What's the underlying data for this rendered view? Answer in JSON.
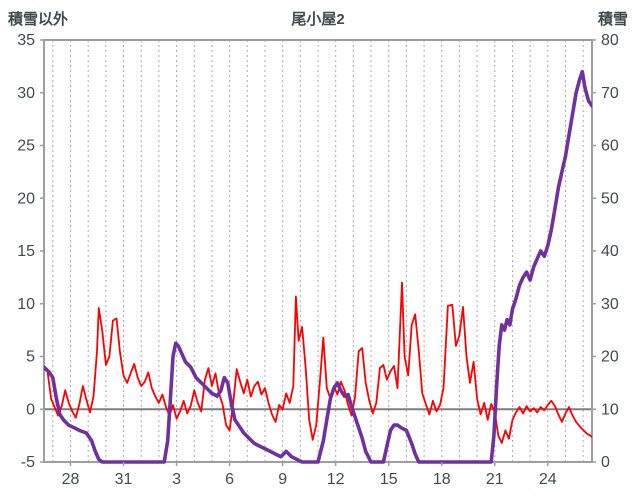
{
  "header": {
    "title": "尾小屋2",
    "left_axis_title": "積雪以外",
    "right_axis_title": "積雪"
  },
  "colors": {
    "text": "#3f4c4c",
    "grid": "#aaaaaa",
    "border": "#9e9e9e",
    "zero_line": "#7f7f7f",
    "red_series": "#ff0000",
    "purple_series": "#7030a0",
    "background": "#ffffff"
  },
  "chart_data": {
    "type": "line",
    "title": "尾小屋2",
    "left_axis": {
      "label": "積雪以外",
      "min": -5,
      "max": 35,
      "ticks": [
        35,
        30,
        25,
        20,
        15,
        10,
        5,
        0,
        -5
      ]
    },
    "right_axis": {
      "label": "積雪",
      "min": 0,
      "max": 80,
      "ticks": [
        80,
        70,
        60,
        50,
        40,
        30,
        20,
        10,
        0
      ]
    },
    "x_axis": {
      "min": 0,
      "max": 31,
      "tick_labels": [
        "28",
        "31",
        "3",
        "6",
        "9",
        "12",
        "15",
        "18",
        "21",
        "24"
      ],
      "tick_positions": [
        1.5,
        4.5,
        7.5,
        10.5,
        13.5,
        16.5,
        19.5,
        22.5,
        25.5,
        28.5
      ],
      "gridline_start": 0.5,
      "gridline_step": 1
    },
    "zero_line": {
      "axis": "left",
      "value": 0
    },
    "series": [
      {
        "name": "積雪以外",
        "axis": "left",
        "color": "#ff0000",
        "width": 1.8,
        "points": [
          [
            0,
            3.8
          ],
          [
            0.2,
            3.6
          ],
          [
            0.4,
            1.0
          ],
          [
            0.6,
            0.2
          ],
          [
            0.8,
            -0.6
          ],
          [
            1.0,
            0.3
          ],
          [
            1.2,
            1.8
          ],
          [
            1.4,
            0.6
          ],
          [
            1.6,
            -0.2
          ],
          [
            1.8,
            -0.8
          ],
          [
            2.0,
            0.5
          ],
          [
            2.2,
            2.2
          ],
          [
            2.4,
            0.9
          ],
          [
            2.6,
            -0.3
          ],
          [
            2.8,
            1.2
          ],
          [
            3.0,
            5.5
          ],
          [
            3.1,
            9.6
          ],
          [
            3.3,
            7.4
          ],
          [
            3.5,
            4.2
          ],
          [
            3.7,
            5.0
          ],
          [
            3.9,
            8.4
          ],
          [
            4.1,
            8.6
          ],
          [
            4.3,
            5.4
          ],
          [
            4.5,
            3.2
          ],
          [
            4.7,
            2.5
          ],
          [
            4.9,
            3.4
          ],
          [
            5.1,
            4.3
          ],
          [
            5.3,
            3.0
          ],
          [
            5.5,
            2.2
          ],
          [
            5.7,
            2.6
          ],
          [
            5.9,
            3.5
          ],
          [
            6.1,
            2.0
          ],
          [
            6.3,
            1.2
          ],
          [
            6.5,
            0.6
          ],
          [
            6.7,
            1.4
          ],
          [
            6.9,
            0.2
          ],
          [
            7.1,
            -0.6
          ],
          [
            7.3,
            0.4
          ],
          [
            7.5,
            -0.9
          ],
          [
            7.7,
            -0.2
          ],
          [
            7.9,
            0.8
          ],
          [
            8.1,
            -0.4
          ],
          [
            8.3,
            0.3
          ],
          [
            8.5,
            1.8
          ],
          [
            8.7,
            0.6
          ],
          [
            8.9,
            -0.2
          ],
          [
            9.1,
            2.8
          ],
          [
            9.3,
            3.9
          ],
          [
            9.5,
            2.2
          ],
          [
            9.7,
            3.4
          ],
          [
            9.9,
            1.5
          ],
          [
            10.1,
            0.5
          ],
          [
            10.3,
            -1.5
          ],
          [
            10.5,
            -2.0
          ],
          [
            10.7,
            0.5
          ],
          [
            10.9,
            3.8
          ],
          [
            11.1,
            2.6
          ],
          [
            11.3,
            1.5
          ],
          [
            11.5,
            2.8
          ],
          [
            11.7,
            1.2
          ],
          [
            11.9,
            2.2
          ],
          [
            12.1,
            2.6
          ],
          [
            12.3,
            1.4
          ],
          [
            12.5,
            2.0
          ],
          [
            12.7,
            0.6
          ],
          [
            12.9,
            -0.5
          ],
          [
            13.1,
            -1.2
          ],
          [
            13.3,
            0.4
          ],
          [
            13.5,
            0.0
          ],
          [
            13.7,
            1.5
          ],
          [
            13.9,
            0.6
          ],
          [
            14.1,
            2.2
          ],
          [
            14.25,
            10.7
          ],
          [
            14.4,
            6.5
          ],
          [
            14.6,
            7.8
          ],
          [
            14.8,
            4.0
          ],
          [
            15.0,
            -1.0
          ],
          [
            15.2,
            -2.9
          ],
          [
            15.4,
            -1.5
          ],
          [
            15.6,
            2.5
          ],
          [
            15.8,
            6.8
          ],
          [
            16.0,
            2.0
          ],
          [
            16.2,
            1.0
          ],
          [
            16.4,
            2.2
          ],
          [
            16.6,
            1.4
          ],
          [
            16.8,
            2.6
          ],
          [
            17.0,
            1.8
          ],
          [
            17.2,
            0.4
          ],
          [
            17.4,
            -0.6
          ],
          [
            17.6,
            1.2
          ],
          [
            17.8,
            5.5
          ],
          [
            18.0,
            5.8
          ],
          [
            18.2,
            2.5
          ],
          [
            18.4,
            0.8
          ],
          [
            18.6,
            -0.4
          ],
          [
            18.8,
            0.6
          ],
          [
            19.0,
            3.9
          ],
          [
            19.2,
            4.2
          ],
          [
            19.4,
            2.8
          ],
          [
            19.6,
            3.6
          ],
          [
            19.8,
            4.1
          ],
          [
            20.0,
            2.0
          ],
          [
            20.25,
            12.0
          ],
          [
            20.4,
            5.0
          ],
          [
            20.6,
            3.2
          ],
          [
            20.8,
            8.0
          ],
          [
            21.0,
            9.0
          ],
          [
            21.2,
            5.5
          ],
          [
            21.4,
            1.5
          ],
          [
            21.6,
            0.5
          ],
          [
            21.8,
            -0.5
          ],
          [
            22.0,
            0.8
          ],
          [
            22.2,
            -0.2
          ],
          [
            22.4,
            0.4
          ],
          [
            22.6,
            2.0
          ],
          [
            22.85,
            9.8
          ],
          [
            23.1,
            9.9
          ],
          [
            23.3,
            6.0
          ],
          [
            23.5,
            7.0
          ],
          [
            23.7,
            9.7
          ],
          [
            23.9,
            5.0
          ],
          [
            24.1,
            2.5
          ],
          [
            24.3,
            4.5
          ],
          [
            24.5,
            1.0
          ],
          [
            24.7,
            -0.5
          ],
          [
            24.9,
            0.6
          ],
          [
            25.1,
            -1.0
          ],
          [
            25.3,
            0.5
          ],
          [
            25.5,
            -0.3
          ],
          [
            25.7,
            -2.5
          ],
          [
            25.9,
            -3.2
          ],
          [
            26.1,
            -2.0
          ],
          [
            26.3,
            -2.8
          ],
          [
            26.5,
            -1.0
          ],
          [
            26.7,
            -0.3
          ],
          [
            26.9,
            0.2
          ],
          [
            27.1,
            -0.4
          ],
          [
            27.3,
            0.3
          ],
          [
            27.5,
            -0.2
          ],
          [
            27.7,
            0.1
          ],
          [
            27.9,
            -0.3
          ],
          [
            28.1,
            0.2
          ],
          [
            28.3,
            -0.1
          ],
          [
            28.5,
            0.4
          ],
          [
            28.7,
            0.8
          ],
          [
            28.9,
            0.3
          ],
          [
            29.1,
            -0.5
          ],
          [
            29.3,
            -1.2
          ],
          [
            29.5,
            -0.4
          ],
          [
            29.7,
            0.2
          ],
          [
            29.9,
            -0.6
          ],
          [
            30.1,
            -1.2
          ],
          [
            30.4,
            -1.8
          ],
          [
            30.7,
            -2.3
          ],
          [
            31,
            -2.6
          ]
        ]
      },
      {
        "name": "積雪",
        "axis": "right",
        "color": "#7030a0",
        "width": 3.6,
        "points": [
          [
            0,
            18
          ],
          [
            0.3,
            17
          ],
          [
            0.5,
            16
          ],
          [
            0.7,
            12
          ],
          [
            0.9,
            9
          ],
          [
            1.1,
            8
          ],
          [
            1.4,
            7
          ],
          [
            1.7,
            6.5
          ],
          [
            2.0,
            6
          ],
          [
            2.4,
            5.5
          ],
          [
            2.7,
            4
          ],
          [
            2.9,
            2
          ],
          [
            3.1,
            0.5
          ],
          [
            3.3,
            0
          ],
          [
            6.8,
            0
          ],
          [
            7.0,
            4
          ],
          [
            7.15,
            12
          ],
          [
            7.3,
            20
          ],
          [
            7.45,
            22.5
          ],
          [
            7.6,
            22
          ],
          [
            7.8,
            20.5
          ],
          [
            8.0,
            19
          ],
          [
            8.3,
            18
          ],
          [
            8.6,
            16
          ],
          [
            8.9,
            15
          ],
          [
            9.2,
            14
          ],
          [
            9.5,
            13
          ],
          [
            9.8,
            12.5
          ],
          [
            10.0,
            13.5
          ],
          [
            10.2,
            16
          ],
          [
            10.4,
            15
          ],
          [
            10.6,
            11
          ],
          [
            10.8,
            8
          ],
          [
            11.0,
            7
          ],
          [
            11.3,
            5.5
          ],
          [
            11.6,
            4.5
          ],
          [
            11.9,
            3.5
          ],
          [
            12.2,
            3
          ],
          [
            12.5,
            2.5
          ],
          [
            12.8,
            2
          ],
          [
            13.1,
            1.5
          ],
          [
            13.4,
            1
          ],
          [
            13.7,
            2
          ],
          [
            14.0,
            1
          ],
          [
            14.3,
            0.5
          ],
          [
            14.6,
            0
          ],
          [
            15.5,
            0
          ],
          [
            15.8,
            4
          ],
          [
            16.0,
            8
          ],
          [
            16.2,
            12
          ],
          [
            16.4,
            14
          ],
          [
            16.6,
            15
          ],
          [
            16.8,
            13.5
          ],
          [
            17.0,
            12.5
          ],
          [
            17.2,
            12.8
          ],
          [
            17.4,
            10.5
          ],
          [
            17.6,
            8.5
          ],
          [
            17.8,
            6.5
          ],
          [
            18.0,
            4.5
          ],
          [
            18.2,
            2
          ],
          [
            18.5,
            0
          ],
          [
            19.2,
            0
          ],
          [
            19.4,
            3
          ],
          [
            19.6,
            6
          ],
          [
            19.8,
            7
          ],
          [
            20.0,
            7
          ],
          [
            20.2,
            6.5
          ],
          [
            20.5,
            6
          ],
          [
            20.8,
            3.5
          ],
          [
            21.0,
            1.5
          ],
          [
            21.2,
            0
          ],
          [
            25.3,
            0
          ],
          [
            25.45,
            5
          ],
          [
            25.6,
            14
          ],
          [
            25.75,
            22
          ],
          [
            25.9,
            26
          ],
          [
            26.05,
            25
          ],
          [
            26.2,
            27
          ],
          [
            26.35,
            26
          ],
          [
            26.5,
            29
          ],
          [
            26.7,
            31
          ],
          [
            26.9,
            33.5
          ],
          [
            27.1,
            35
          ],
          [
            27.3,
            36
          ],
          [
            27.5,
            34.5
          ],
          [
            27.7,
            37
          ],
          [
            27.9,
            38.5
          ],
          [
            28.1,
            40
          ],
          [
            28.3,
            39
          ],
          [
            28.5,
            41
          ],
          [
            28.7,
            44
          ],
          [
            28.9,
            48
          ],
          [
            29.1,
            52
          ],
          [
            29.3,
            55
          ],
          [
            29.5,
            58
          ],
          [
            29.7,
            62
          ],
          [
            29.9,
            66
          ],
          [
            30.1,
            70
          ],
          [
            30.3,
            72.5
          ],
          [
            30.45,
            74
          ],
          [
            30.6,
            71
          ],
          [
            30.8,
            68.5
          ],
          [
            31,
            67.5
          ]
        ]
      }
    ],
    "layout_hints": {
      "grid": "vertical-dashed-daily",
      "legend": "none"
    }
  }
}
